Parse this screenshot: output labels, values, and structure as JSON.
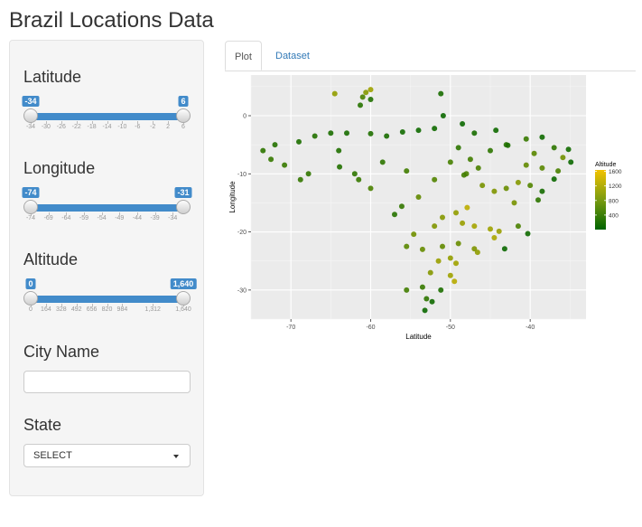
{
  "app": {
    "title": "Brazil Locations Data"
  },
  "sidebar": {
    "latitude": {
      "label": "Latitude",
      "min": -34,
      "max": 6,
      "from": -34,
      "to": 6,
      "from_label": "-34",
      "to_label": "6",
      "ticks": [
        "-34",
        "-30",
        "-26",
        "-22",
        "-18",
        "-14",
        "-10",
        "-6",
        "-2",
        "2",
        "6"
      ]
    },
    "longitude": {
      "label": "Longitude",
      "min": -74,
      "max": -31,
      "from": -74,
      "to": -31,
      "from_label": "-74",
      "to_label": "-31",
      "ticks": [
        "-74",
        "-69",
        "-64",
        "-59",
        "-54",
        "-49",
        "-44",
        "-39",
        "-34"
      ]
    },
    "altitude": {
      "label": "Altitude",
      "min": 0,
      "max": 1640,
      "from": 0,
      "to": 1640,
      "from_label": "0",
      "to_label": "1,640",
      "ticks": [
        "0",
        "164",
        "328",
        "492",
        "656",
        "820",
        "984",
        "1,312",
        "1,640"
      ]
    },
    "city": {
      "label": "City Name",
      "value": "",
      "placeholder": ""
    },
    "state": {
      "label": "State",
      "selected": "SELECT"
    }
  },
  "tabs": [
    {
      "label": "Plot",
      "active": true
    },
    {
      "label": "Dataset",
      "active": false
    }
  ],
  "chart_data": {
    "type": "scatter",
    "xlabel": "Latitude",
    "ylabel": "Longitude",
    "xlim": [
      -75,
      -33
    ],
    "ylim": [
      -35,
      7
    ],
    "x_ticks": [
      "-70",
      "-60",
      "-50",
      "-40"
    ],
    "y_ticks": [
      "0",
      "-10",
      "-20",
      "-30"
    ],
    "grid": true,
    "legend": {
      "title": "Altitude",
      "position": "right",
      "labels": [
        "1600",
        "1200",
        "800",
        "400"
      ],
      "colors": [
        "#006400",
        "#F2C200"
      ],
      "range": [
        0,
        1640
      ]
    },
    "points": [
      [
        -60.0,
        4.5,
        900
      ],
      [
        -60.6,
        4.0,
        700
      ],
      [
        -61.0,
        3.2,
        300
      ],
      [
        -64.5,
        3.8,
        800
      ],
      [
        -51.2,
        3.8,
        60
      ],
      [
        -50.9,
        0.0,
        20
      ],
      [
        -60.0,
        2.8,
        90
      ],
      [
        -61.3,
        1.8,
        120
      ],
      [
        -72.5,
        -7.5,
        190
      ],
      [
        -70.8,
        -8.5,
        200
      ],
      [
        -67.8,
        -10.0,
        170
      ],
      [
        -68.8,
        -11.0,
        180
      ],
      [
        -73.5,
        -6.0,
        150
      ],
      [
        -72.0,
        -5.0,
        110
      ],
      [
        -69.0,
        -4.5,
        80
      ],
      [
        -67.0,
        -3.5,
        100
      ],
      [
        -65.0,
        -3.0,
        70
      ],
      [
        -63.0,
        -3.0,
        60
      ],
      [
        -60.0,
        -3.1,
        90
      ],
      [
        -58.0,
        -3.5,
        60
      ],
      [
        -56.0,
        -2.8,
        40
      ],
      [
        -54.0,
        -2.5,
        30
      ],
      [
        -52.0,
        -2.2,
        30
      ],
      [
        -63.9,
        -8.8,
        100
      ],
      [
        -62.0,
        -10.0,
        160
      ],
      [
        -60.0,
        -12.5,
        300
      ],
      [
        -61.5,
        -11.0,
        200
      ],
      [
        -64.0,
        -6.0,
        90
      ],
      [
        -58.5,
        -8.0,
        150
      ],
      [
        -55.5,
        -9.5,
        250
      ],
      [
        -56.1,
        -15.6,
        180
      ],
      [
        -54.0,
        -14.0,
        450
      ],
      [
        -57.0,
        -17.0,
        120
      ],
      [
        -54.6,
        -20.4,
        550
      ],
      [
        -55.5,
        -22.5,
        400
      ],
      [
        -53.5,
        -23.0,
        480
      ],
      [
        -47.9,
        -15.8,
        1150
      ],
      [
        -49.3,
        -16.7,
        800
      ],
      [
        -48.5,
        -18.5,
        850
      ],
      [
        -47.0,
        -19.0,
        950
      ],
      [
        -45.0,
        -19.5,
        900
      ],
      [
        -43.9,
        -19.9,
        850
      ],
      [
        -44.5,
        -21.0,
        1000
      ],
      [
        -46.6,
        -23.5,
        780
      ],
      [
        -47.0,
        -22.9,
        650
      ],
      [
        -49.0,
        -22.0,
        500
      ],
      [
        -51.0,
        -22.5,
        450
      ],
      [
        -50.0,
        -24.5,
        800
      ],
      [
        -49.3,
        -25.4,
        920
      ],
      [
        -51.5,
        -25.0,
        850
      ],
      [
        -52.5,
        -27.0,
        700
      ],
      [
        -50.0,
        -27.5,
        900
      ],
      [
        -49.5,
        -28.5,
        1100
      ],
      [
        -51.2,
        -30.0,
        80
      ],
      [
        -53.5,
        -29.5,
        200
      ],
      [
        -55.5,
        -30.0,
        250
      ],
      [
        -53.0,
        -31.5,
        150
      ],
      [
        -52.3,
        -32.0,
        30
      ],
      [
        -53.2,
        -33.5,
        20
      ],
      [
        -43.2,
        -22.9,
        20
      ],
      [
        -40.3,
        -20.3,
        30
      ],
      [
        -41.5,
        -19.0,
        300
      ],
      [
        -42.0,
        -15.0,
        600
      ],
      [
        -39.0,
        -14.5,
        150
      ],
      [
        -38.5,
        -13.0,
        50
      ],
      [
        -40.0,
        -12.0,
        350
      ],
      [
        -41.5,
        -11.5,
        700
      ],
      [
        -43.0,
        -12.5,
        500
      ],
      [
        -44.5,
        -13.0,
        650
      ],
      [
        -46.0,
        -12.0,
        600
      ],
      [
        -48.0,
        -10.0,
        300
      ],
      [
        -47.5,
        -7.5,
        250
      ],
      [
        -45.0,
        -6.0,
        150
      ],
      [
        -43.0,
        -5.0,
        120
      ],
      [
        -42.8,
        -5.1,
        80
      ],
      [
        -44.3,
        -2.5,
        30
      ],
      [
        -38.5,
        -3.7,
        30
      ],
      [
        -37.0,
        -5.5,
        150
      ],
      [
        -35.2,
        -5.8,
        40
      ],
      [
        -35.9,
        -7.2,
        550
      ],
      [
        -34.9,
        -8.0,
        20
      ],
      [
        -36.5,
        -9.5,
        300
      ],
      [
        -37.0,
        -10.9,
        20
      ],
      [
        -38.5,
        -9.0,
        400
      ],
      [
        -40.5,
        -8.5,
        450
      ],
      [
        -39.5,
        -6.5,
        400
      ],
      [
        -40.5,
        -4.0,
        200
      ],
      [
        -48.5,
        -1.4,
        20
      ],
      [
        -47.0,
        -3.0,
        60
      ],
      [
        -49.0,
        -5.5,
        150
      ],
      [
        -50.0,
        -8.0,
        280
      ],
      [
        -52.0,
        -11.0,
        350
      ],
      [
        -48.3,
        -10.2,
        250
      ],
      [
        -46.5,
        -9.0,
        300
      ],
      [
        -51.0,
        -17.5,
        700
      ],
      [
        -52.0,
        -19.0,
        650
      ]
    ]
  }
}
